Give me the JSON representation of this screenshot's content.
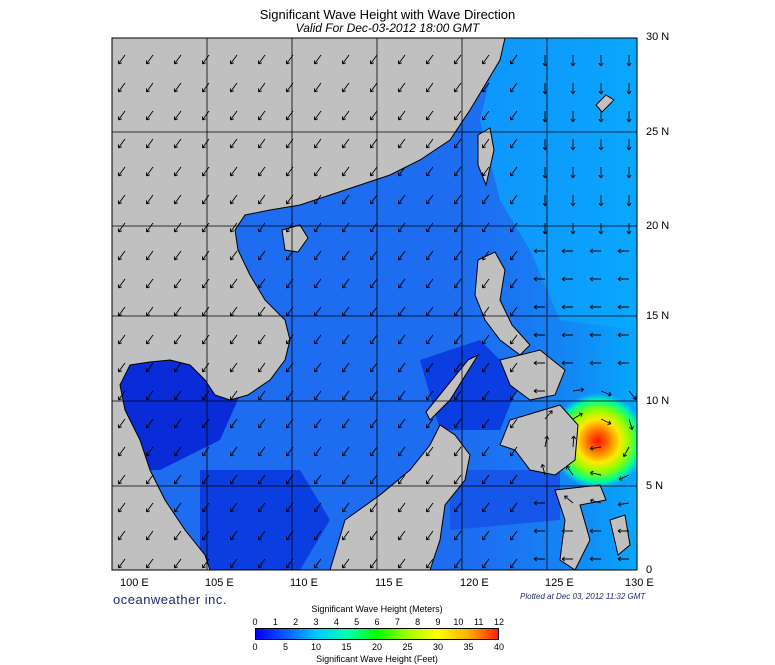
{
  "header": {
    "title": "Significant Wave Height with Wave Direction",
    "subtitle": "Valid For Dec-03-2012 18:00 GMT"
  },
  "map": {
    "lat_labels": [
      "30 N",
      "25 N",
      "20 N",
      "15 N",
      "10 N",
      "5 N",
      "0"
    ],
    "lon_labels": [
      "100 E",
      "105 E",
      "110 E",
      "115 E",
      "120 E",
      "125 E",
      "130 E"
    ],
    "land_color": "#c0c0c0",
    "ocean_base_color": "#1e6cf0",
    "storm_center_color": "#ff1000"
  },
  "footer": {
    "brand": "oceanweather inc.",
    "plotted": "Plotted at Dec 03, 2012 11:32 GMT"
  },
  "colorbar": {
    "title_top": "Significant Wave Height (Meters)",
    "title_bottom": "Significant Wave Height (Feet)",
    "meter_ticks": [
      "0",
      "1",
      "2",
      "3",
      "4",
      "5",
      "6",
      "7",
      "8",
      "9",
      "10",
      "11",
      "12"
    ],
    "feet_ticks": [
      "0",
      "5",
      "10",
      "15",
      "20",
      "25",
      "30",
      "35",
      "40"
    ],
    "colors": [
      "#0000ff",
      "#0a5cff",
      "#00c8ff",
      "#00ffb0",
      "#00ff00",
      "#a0ff00",
      "#ffff00",
      "#ffb000",
      "#ff2000"
    ]
  }
}
